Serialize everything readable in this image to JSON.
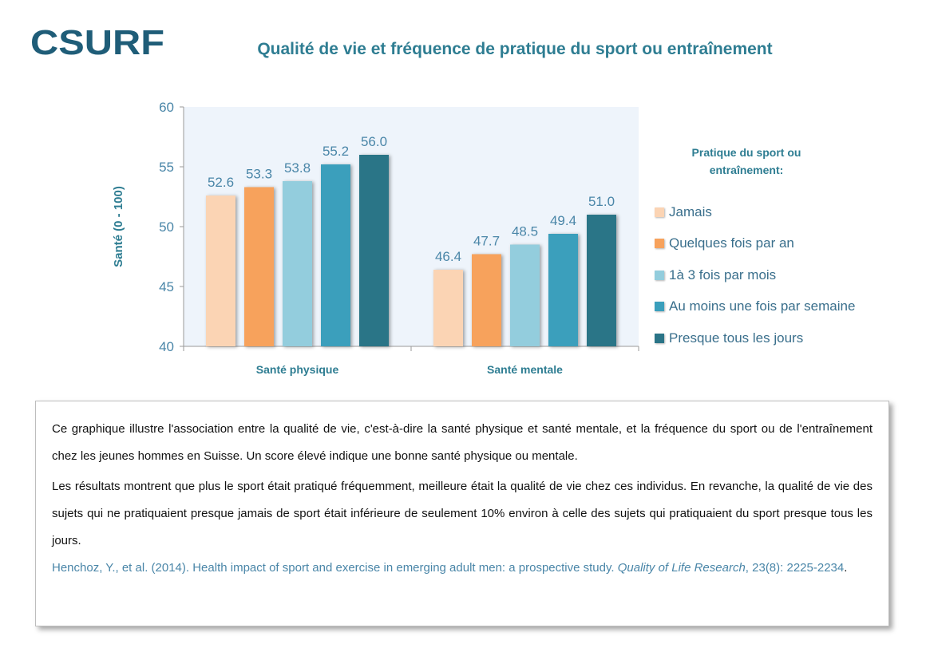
{
  "logo": {
    "text": "CSURF"
  },
  "title": "Qualité de vie et fréquence de pratique du sport ou entraînement",
  "chart_data": {
    "type": "bar",
    "title": "Qualité de vie et fréquence de pratique du sport ou entraînement",
    "xlabel": "",
    "ylabel": "Santé  (0 - 100)",
    "ylim": [
      40,
      60
    ],
    "yticks": [
      40,
      45,
      50,
      55,
      60
    ],
    "categories": [
      "Santé physique",
      "Santé mentale"
    ],
    "series": [
      {
        "name": "Jamais",
        "color": "#fbd4b4",
        "values": [
          52.6,
          46.4
        ],
        "labels": [
          "52.6",
          "46.4"
        ]
      },
      {
        "name": "Quelques fois par an",
        "color": "#f7a25c",
        "values": [
          53.3,
          47.7
        ],
        "labels": [
          "53.3",
          "47.7"
        ]
      },
      {
        "name": "1à 3 fois par mois",
        "color": "#93cddd",
        "values": [
          53.8,
          48.5
        ],
        "labels": [
          "53.8",
          "48.5"
        ]
      },
      {
        "name": "Au moins une fois par semaine",
        "color": "#3a9fbc",
        "values": [
          55.2,
          49.4
        ],
        "labels": [
          "55.2",
          "49.4"
        ]
      },
      {
        "name": "Presque tous les jours",
        "color": "#2a7487",
        "values": [
          56.0,
          51.0
        ],
        "labels": [
          "56.0",
          "51.0"
        ]
      }
    ],
    "legend": {
      "title": "Pratique du sport ou entraînement:",
      "position": "right"
    },
    "grid": false
  },
  "colors": {
    "accent": "#2e7d92",
    "axis_text": "#4a86a8",
    "plot_bg": "#eef4fb"
  },
  "text": {
    "para1": "Ce graphique illustre l'association entre la qualité de vie, c'est-à-dire la santé physique  et santé mentale,  et la fréquence  du sport ou de l'entraînement  chez les jeunes hommes en Suisse. Un score élevé indique  une bonne santé physique  ou mentale.",
    "para2": "Les résultats  montrent  que plus le sport était pratiqué  fréquemment,  meilleure  était la qualité de vie chez ces individus.  En revanche,  la qualité de vie des sujets qui ne pratiquaient  presque  jamais de sport était inférieure de seulement  10% environ à celle des sujets qui pratiquaient du sport presque  tous les jours.",
    "ref_authors": "Henchoz, Y., et al. (2014).  Health impact of sport and exercise in emerging adult men: a prospective study. ",
    "ref_journal": "Quality of Life Research",
    "ref_rest": ", 23(8): 2225-2234",
    "ref_end": "."
  }
}
